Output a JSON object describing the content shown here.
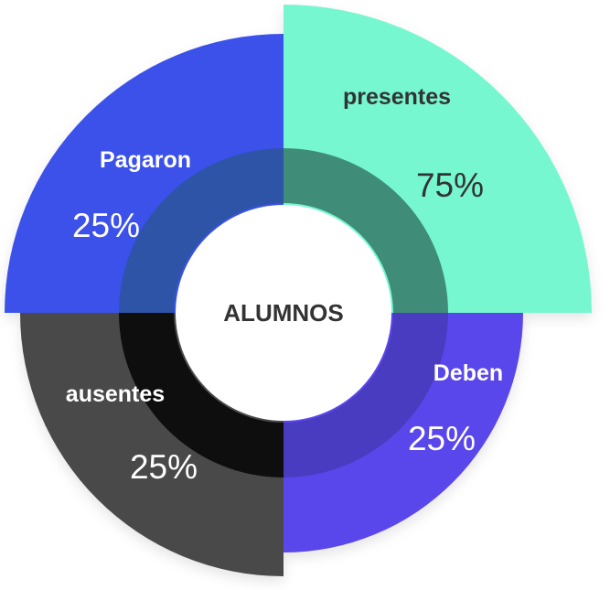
{
  "center_label": "ALUMNOS",
  "segments": [
    {
      "id": "presentes",
      "label": "presentes",
      "value_text": "75%",
      "color": "#76f7cf",
      "text_color": "#333333",
      "ring_color": "#3f8c78"
    },
    {
      "id": "deben",
      "label": "Deben",
      "value_text": "25%",
      "color": "#5a46ec",
      "text_color": "#ffffff",
      "ring_color": "#4a3cc0"
    },
    {
      "id": "ausentes",
      "label": "ausentes",
      "value_text": "25%",
      "color": "#484848",
      "text_color": "#ffffff",
      "ring_color": "#0e0e0e"
    },
    {
      "id": "pagaron",
      "label": "Pagaron",
      "value_text": "25%",
      "color": "#3a51ea",
      "text_color": "#ffffff",
      "ring_color": "#2e54a8"
    }
  ],
  "colors": {
    "background": "#ffffff",
    "center_fill": "#ffffff",
    "center_text": "#333333"
  }
}
